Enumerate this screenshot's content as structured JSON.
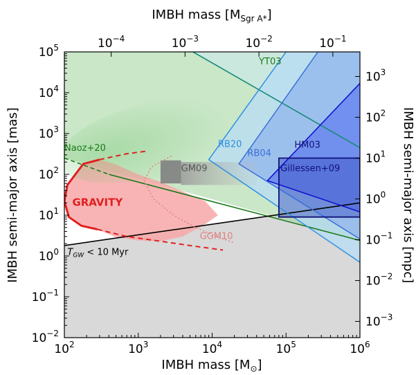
{
  "chart_data": {
    "type": "scatter",
    "xlabel_main": "IMBH mass [M",
    "xlabel_sub": "⊙",
    "xlabel_end": "]",
    "xlabel_top_main": "IMBH mass [M",
    "xlabel_top_sub": "Sgr A*",
    "xlabel_top_end": "]",
    "ylabel_left": "IMBH semi-major axis [mas]",
    "ylabel_right": "IMBH semi-major axis [mpc]",
    "x_scale": "log",
    "y_scale": "log",
    "xlim": [
      100,
      1000000
    ],
    "ylim": [
      0.01,
      100000
    ],
    "x_ticks": [
      {
        "value": 100,
        "base": "10",
        "exp": "2"
      },
      {
        "value": 1000,
        "base": "10",
        "exp": "3"
      },
      {
        "value": 10000,
        "base": "10",
        "exp": "4"
      },
      {
        "value": 100000,
        "base": "10",
        "exp": "5"
      },
      {
        "value": 1000000,
        "base": "10",
        "exp": "6"
      }
    ],
    "y_ticks": [
      {
        "value": 0.01,
        "base": "10",
        "exp": "−2"
      },
      {
        "value": 0.1,
        "base": "10",
        "exp": "−1"
      },
      {
        "value": 1,
        "base": "10",
        "exp": "0"
      },
      {
        "value": 10,
        "base": "10",
        "exp": "1"
      },
      {
        "value": 100,
        "base": "10",
        "exp": "2"
      },
      {
        "value": 1000,
        "base": "10",
        "exp": "3"
      },
      {
        "value": 10000,
        "base": "10",
        "exp": "4"
      },
      {
        "value": 100000,
        "base": "10",
        "exp": "5"
      }
    ],
    "top_ticks": [
      {
        "x_value": 430,
        "base": "10",
        "exp": "−4"
      },
      {
        "x_value": 4300,
        "base": "10",
        "exp": "−3"
      },
      {
        "x_value": 43000,
        "base": "10",
        "exp": "−2"
      },
      {
        "x_value": 430000,
        "base": "10",
        "exp": "−1"
      }
    ],
    "right_ticks": [
      {
        "y_value": 0.025,
        "base": "10",
        "exp": "−3"
      },
      {
        "y_value": 0.25,
        "base": "10",
        "exp": "−2"
      },
      {
        "y_value": 2.5,
        "base": "10",
        "exp": "−1"
      },
      {
        "y_value": 25,
        "base": "10",
        "exp": "0"
      },
      {
        "y_value": 250,
        "base": "10",
        "exp": "1"
      },
      {
        "y_value": 2500,
        "base": "10",
        "exp": "2"
      },
      {
        "y_value": 25000,
        "base": "10",
        "exp": "3"
      }
    ],
    "regions": [
      {
        "name": "lifetime",
        "fill": "#d9d9d9",
        "opacity": 1,
        "points": [
          [
            100,
            0.01
          ],
          [
            1000000,
            0.01
          ],
          [
            1000000,
            20
          ],
          [
            100,
            1.8
          ]
        ]
      },
      {
        "name": "naoz-allowed",
        "fill": "#9fd49a",
        "opacity": 0.55,
        "points": [
          [
            100,
            250
          ],
          [
            1000000,
            2.4
          ],
          [
            1000000,
            100000
          ],
          [
            100,
            100000
          ]
        ]
      },
      {
        "name": "yt03",
        "fill": "#cbe8e0",
        "opacity": 0.9,
        "points": [
          [
            5500,
            100000
          ],
          [
            1000000,
            100000
          ],
          [
            1000000,
            450
          ]
        ]
      },
      {
        "name": "rb20",
        "fill": "#b7dcf6",
        "opacity": 0.75,
        "points": [
          [
            9000,
            230
          ],
          [
            100000,
            100000
          ],
          [
            1000000,
            100000
          ],
          [
            1000000,
            0.7
          ]
        ]
      },
      {
        "name": "rb04",
        "fill": "#8fb2ec",
        "opacity": 0.7,
        "points": [
          [
            23000,
            180
          ],
          [
            270000,
            100000
          ],
          [
            1000000,
            100000
          ],
          [
            1000000,
            2.6
          ]
        ]
      },
      {
        "name": "hm03",
        "fill": "#5f7cf0",
        "opacity": 0.7,
        "points": [
          [
            56000,
            70
          ],
          [
            1000000,
            17000
          ],
          [
            1000000,
            12
          ]
        ]
      },
      {
        "name": "gillessen09",
        "fill": "#3a4fc0",
        "opacity": 0.45,
        "points": [
          [
            80000,
            9
          ],
          [
            1000000,
            9
          ],
          [
            1000000,
            250
          ],
          [
            80000,
            250
          ]
        ]
      },
      {
        "name": "gravity",
        "fill": "#f7a7a7",
        "opacity": 0.85,
        "points": [
          [
            280,
            4.5
          ],
          [
            500,
            2.9
          ],
          [
            1000,
            2.4
          ],
          [
            2000,
            2.3
          ],
          [
            4000,
            3
          ],
          [
            8000,
            6
          ],
          [
            12000,
            10
          ],
          [
            8000,
            22
          ],
          [
            4000,
            38
          ],
          [
            2000,
            65
          ],
          [
            1000,
            100
          ],
          [
            500,
            175
          ],
          [
            300,
            230
          ],
          [
            180,
            180
          ],
          [
            110,
            55
          ],
          [
            100,
            22
          ],
          [
            115,
            9
          ],
          [
            170,
            5.5
          ]
        ]
      }
    ],
    "curves": [
      {
        "name": "yt03-line",
        "color": "#1a8a7a",
        "width": 1.6,
        "dash": "",
        "points": [
          [
            5500,
            100000
          ],
          [
            1000000,
            450
          ]
        ]
      },
      {
        "name": "naoz-solid",
        "color": "#1a7a1a",
        "width": 1.6,
        "dash": "",
        "points": [
          [
            400,
            100
          ],
          [
            1000000,
            2.4
          ]
        ]
      },
      {
        "name": "naoz-dashed",
        "color": "#1a7a1a",
        "width": 1.6,
        "dash": "6,4",
        "points": [
          [
            100,
            250
          ],
          [
            400,
            100
          ]
        ]
      },
      {
        "name": "lifetime-line",
        "color": "#000000",
        "width": 1.6,
        "dash": "",
        "points": [
          [
            100,
            1.8
          ],
          [
            1000000,
            20
          ]
        ]
      },
      {
        "name": "rb20-edge",
        "color": "#2f8fe0",
        "width": 1.5,
        "dash": "",
        "points": [
          [
            100000,
            100000
          ],
          [
            9000,
            230
          ],
          [
            1000000,
            0.7
          ]
        ]
      },
      {
        "name": "rb04-edge",
        "color": "#3a6fd8",
        "width": 1.5,
        "dash": "",
        "points": [
          [
            270000,
            100000
          ],
          [
            23000,
            180
          ],
          [
            1000000,
            2.6
          ]
        ]
      },
      {
        "name": "hm03-edge",
        "color": "#1212d0",
        "width": 1.6,
        "dash": "",
        "points": [
          [
            1000000,
            17000
          ],
          [
            56000,
            70
          ],
          [
            1000000,
            12
          ]
        ]
      },
      {
        "name": "gillessen-box",
        "color": "#10107a",
        "width": 1.8,
        "dash": "",
        "closed": true,
        "points": [
          [
            80000,
            9
          ],
          [
            1000000,
            9
          ],
          [
            1000000,
            250
          ],
          [
            80000,
            250
          ]
        ]
      },
      {
        "name": "gravity-solid",
        "color": "#e02020",
        "width": 3,
        "dash": "",
        "points": [
          [
            280,
            4.5
          ],
          [
            170,
            5.5
          ],
          [
            115,
            9
          ],
          [
            100,
            22
          ],
          [
            110,
            55
          ],
          [
            180,
            180
          ],
          [
            300,
            230
          ]
        ]
      },
      {
        "name": "gravity-dashed-upper",
        "color": "#e02020",
        "width": 2,
        "dash": "7,5",
        "points": [
          [
            300,
            230
          ],
          [
            700,
            320
          ],
          [
            1300,
            370
          ]
        ]
      },
      {
        "name": "gravity-dashed-lower",
        "color": "#e02020",
        "width": 2,
        "dash": "7,5",
        "points": [
          [
            280,
            4.5
          ],
          [
            700,
            3.0
          ],
          [
            2000,
            2.3
          ],
          [
            5000,
            1.8
          ],
          [
            14000,
            1.4
          ]
        ]
      },
      {
        "name": "ggm10-dotted",
        "color": "#e08080",
        "width": 1.5,
        "dash": "2,3",
        "points": [
          [
            2800,
            280
          ],
          [
            1500,
            150
          ],
          [
            1200,
            70
          ],
          [
            1600,
            25
          ],
          [
            3000,
            10
          ],
          [
            6000,
            5
          ],
          [
            12000,
            2.9
          ],
          [
            20000,
            2.1
          ]
        ]
      }
    ],
    "gm09_box": [
      2000,
      3800,
      60,
      220
    ],
    "gm09_strip": [
      3800,
      40000,
      55,
      200
    ],
    "annotations": [
      {
        "name": "label-yt03",
        "text": "YT03",
        "x": 43000,
        "y": 50000,
        "color": "#1a7a1a",
        "size": 13
      },
      {
        "name": "label-rb20",
        "text": "RB20",
        "x": 12000,
        "y": 470,
        "color": "#2f8fe0",
        "size": 13
      },
      {
        "name": "label-rb04",
        "text": "RB04",
        "x": 30000,
        "y": 280,
        "color": "#3a6fd8",
        "size": 13
      },
      {
        "name": "label-hm03",
        "text": "HM03",
        "x": 130000,
        "y": 450,
        "color": "#10107a",
        "size": 13
      },
      {
        "name": "label-gm09",
        "text": "GM09",
        "x": 3800,
        "y": 120,
        "color": "#555555",
        "size": 13
      },
      {
        "name": "label-gillessen09",
        "text": "Gillessen+09",
        "x": 84000,
        "y": 120,
        "color": "#10107a",
        "size": 13
      },
      {
        "name": "label-naoz20",
        "text": "Naoz+20",
        "x": 100,
        "y": 380,
        "color": "#1a7a1a",
        "size": 13
      },
      {
        "name": "label-gravity",
        "text": "GRAVITY",
        "x": 128,
        "y": 17,
        "color": "#e02020",
        "size": 15,
        "bold": true
      },
      {
        "name": "label-ggm10",
        "text": "GGM10",
        "x": 6800,
        "y": 2.6,
        "color": "#e08080",
        "size": 13
      }
    ],
    "tgw_label": {
      "main": "T",
      "sub": "GW",
      "rest": " < 10 Myr",
      "x": 110,
      "y": 1.05,
      "color": "#000000"
    }
  }
}
